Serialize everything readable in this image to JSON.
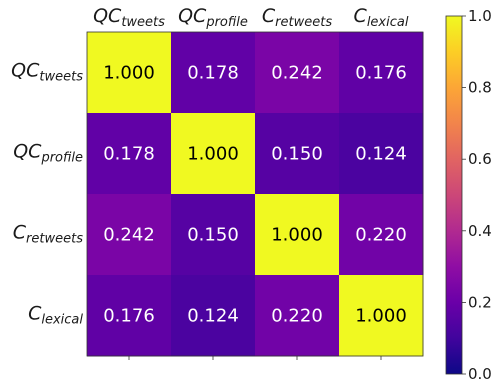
{
  "chart_data": {
    "type": "heatmap",
    "title": "",
    "xlabel": "",
    "ylabel": "",
    "x_labels": [
      {
        "main": "QC",
        "sub": "tweets"
      },
      {
        "main": "QC",
        "sub": "profile"
      },
      {
        "main": "C",
        "sub": "retweets"
      },
      {
        "main": "C",
        "sub": "lexical"
      }
    ],
    "y_labels": [
      {
        "main": "QC",
        "sub": "tweets"
      },
      {
        "main": "QC",
        "sub": "profile"
      },
      {
        "main": "C",
        "sub": "retweets"
      },
      {
        "main": "C",
        "sub": "lexical"
      }
    ],
    "matrix": [
      [
        1.0,
        0.178,
        0.242,
        0.176
      ],
      [
        0.178,
        1.0,
        0.15,
        0.124
      ],
      [
        0.242,
        0.15,
        1.0,
        0.22
      ],
      [
        0.176,
        0.124,
        0.22,
        1.0
      ]
    ],
    "cell_labels": [
      [
        "1.000",
        "0.178",
        "0.242",
        "0.176"
      ],
      [
        "0.178",
        "1.000",
        "0.150",
        "0.124"
      ],
      [
        "0.242",
        "0.150",
        "1.000",
        "0.220"
      ],
      [
        "0.176",
        "0.124",
        "0.220",
        "1.000"
      ]
    ],
    "colormap": "plasma",
    "vmin": 0.0,
    "vmax": 1.0,
    "colorbar_ticks": [
      "0.0",
      "0.2",
      "0.4",
      "0.6",
      "0.8",
      "1.0"
    ],
    "colorbar_tick_values": [
      0.0,
      0.2,
      0.4,
      0.6,
      0.8,
      1.0
    ],
    "x_labels_position": "top",
    "colorbar_position": "right",
    "grid": false
  }
}
